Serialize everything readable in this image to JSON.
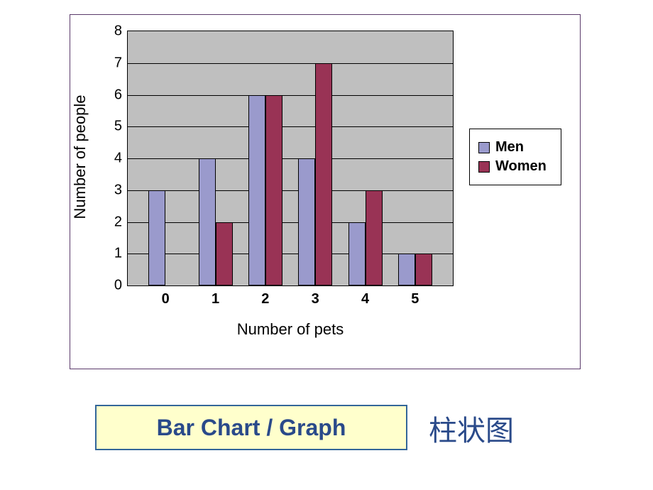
{
  "chart": {
    "type": "bar",
    "xlabel": "Number of pets",
    "ylabel": "Number of people",
    "label_fontsize": 22,
    "tick_fontsize": 20,
    "ylim": [
      0,
      8
    ],
    "yticks": [
      0,
      1,
      2,
      3,
      4,
      5,
      6,
      7,
      8
    ],
    "categories": [
      "0",
      "1",
      "2",
      "3",
      "4",
      "5"
    ],
    "series": [
      {
        "name": "Men",
        "color": "#9a9acc",
        "values": [
          3,
          4,
          6,
          4,
          2,
          1
        ]
      },
      {
        "name": "Women",
        "color": "#993355",
        "values": [
          0,
          2,
          6,
          7,
          3,
          1
        ]
      }
    ],
    "background_color": "#bfbfbf",
    "grid_color": "#000000",
    "bar_border_color": "#000000",
    "legend_background": "#ffffff",
    "outer_border_color": "#5a3a6a"
  },
  "caption": {
    "box_text": "Bar Chart /  Graph",
    "box_bg": "#ffffcc",
    "box_border": "#336699",
    "text_color": "#2a4a8a",
    "cn_text": "柱状图"
  }
}
